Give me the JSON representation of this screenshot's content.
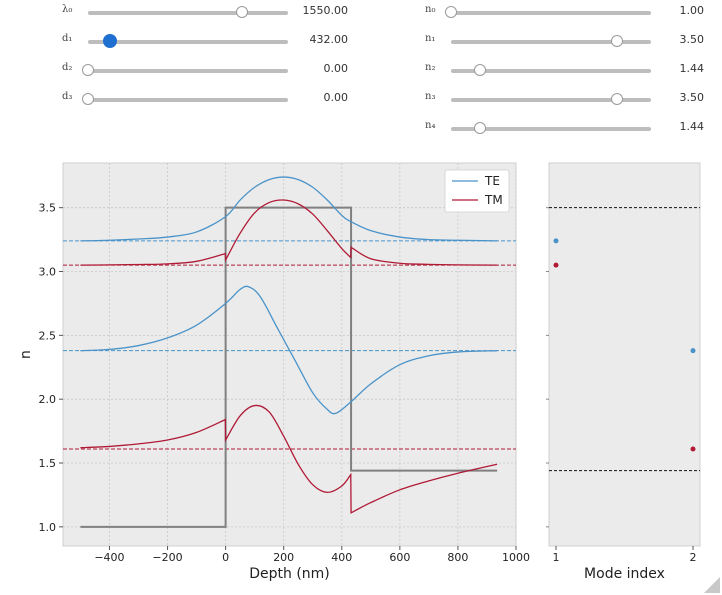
{
  "sliders_left": [
    {
      "label": "λ₀",
      "value_text": "1550.00",
      "fraction": 0.77,
      "active": false
    },
    {
      "label": "d₁",
      "value_text": "432.00",
      "fraction": 0.108,
      "active": true
    },
    {
      "label": "d₂",
      "value_text": "0.00",
      "fraction": 0.0,
      "active": false
    },
    {
      "label": "d₃",
      "value_text": "0.00",
      "fraction": 0.0,
      "active": false
    }
  ],
  "sliders_right": [
    {
      "label": "n₀",
      "value_text": "1.00",
      "fraction": 0.0,
      "active": false
    },
    {
      "label": "n₁",
      "value_text": "3.50",
      "fraction": 0.83,
      "active": false
    },
    {
      "label": "n₂",
      "value_text": "1.44",
      "fraction": 0.147,
      "active": false
    },
    {
      "label": "n₃",
      "value_text": "3.50",
      "fraction": 0.83,
      "active": false
    },
    {
      "label": "n₄",
      "value_text": "1.44",
      "fraction": 0.147,
      "active": false
    }
  ],
  "colors": {
    "te": "#4a93c9",
    "tm": "#b01a35",
    "profile": "#808080",
    "plot_bg": "#ebebeb",
    "grid": "#c8c8c8",
    "knob_active": "#1f6fd1"
  },
  "chart_data": [
    {
      "type": "line",
      "title": "",
      "xlabel": "Depth (nm)",
      "ylabel": "n",
      "xlim": [
        -560,
        1000
      ],
      "ylim": [
        0.85,
        3.85
      ],
      "xticks": [
        -400,
        -200,
        0,
        200,
        400,
        600,
        800,
        1000
      ],
      "xtick_labels": [
        "−400",
        "−200",
        "0",
        "200",
        "400",
        "600",
        "800",
        "1000"
      ],
      "yticks": [
        1.0,
        1.5,
        2.0,
        2.5,
        3.0,
        3.5
      ],
      "ytick_labels": [
        "1.0",
        "1.5",
        "2.0",
        "2.5",
        "3.0",
        "3.5"
      ],
      "grid": true,
      "legend": {
        "position": "top-right",
        "entries": [
          {
            "label": "TE",
            "color": "#4a93c9"
          },
          {
            "label": "TM",
            "color": "#b01a35"
          }
        ]
      },
      "index_profile": {
        "x": [
          -500,
          0,
          0,
          432,
          432,
          935
        ],
        "y": [
          1.0,
          1.0,
          3.5,
          3.5,
          1.44,
          1.44
        ]
      },
      "effective_indices": [
        {
          "polarization": "TE",
          "n_eff": 3.24
        },
        {
          "polarization": "TM",
          "n_eff": 3.05
        },
        {
          "polarization": "TE",
          "n_eff": 2.38
        },
        {
          "polarization": "TM",
          "n_eff": 1.61
        }
      ],
      "mode_profiles": [
        {
          "polarization": "TE",
          "x": [
            -500,
            -400,
            -300,
            -200,
            -100,
            0,
            50,
            100,
            150,
            200,
            250,
            300,
            350,
            400,
            432,
            500,
            600,
            700,
            800,
            935
          ],
          "y": [
            3.24,
            3.245,
            3.255,
            3.27,
            3.31,
            3.43,
            3.56,
            3.66,
            3.72,
            3.74,
            3.72,
            3.66,
            3.56,
            3.44,
            3.39,
            3.32,
            3.27,
            3.25,
            3.245,
            3.24
          ]
        },
        {
          "polarization": "TM",
          "x": [
            -500,
            -400,
            -300,
            -200,
            -100,
            -1,
            0,
            50,
            100,
            150,
            200,
            250,
            300,
            350,
            400,
            431,
            432,
            500,
            600,
            700,
            800,
            935
          ],
          "y": [
            3.05,
            3.052,
            3.055,
            3.06,
            3.08,
            3.14,
            3.09,
            3.3,
            3.46,
            3.54,
            3.56,
            3.53,
            3.45,
            3.32,
            3.18,
            3.11,
            3.19,
            3.1,
            3.065,
            3.056,
            3.052,
            3.05
          ]
        },
        {
          "polarization": "TE",
          "x": [
            -500,
            -400,
            -300,
            -200,
            -100,
            0,
            50,
            80,
            120,
            180,
            240,
            300,
            350,
            380,
            432,
            500,
            600,
            700,
            800,
            935
          ],
          "y": [
            2.38,
            2.39,
            2.42,
            2.48,
            2.58,
            2.75,
            2.86,
            2.88,
            2.8,
            2.55,
            2.3,
            2.05,
            1.92,
            1.89,
            1.98,
            2.12,
            2.27,
            2.34,
            2.37,
            2.38
          ]
        },
        {
          "polarization": "TM",
          "x": [
            -500,
            -400,
            -300,
            -200,
            -100,
            -1,
            0,
            50,
            100,
            150,
            200,
            250,
            300,
            350,
            400,
            431,
            432,
            500,
            600,
            700,
            800,
            935
          ],
          "y": [
            1.62,
            1.63,
            1.65,
            1.68,
            1.74,
            1.84,
            1.68,
            1.87,
            1.95,
            1.9,
            1.71,
            1.49,
            1.33,
            1.27,
            1.32,
            1.41,
            1.11,
            1.19,
            1.29,
            1.36,
            1.42,
            1.49
          ]
        }
      ]
    },
    {
      "type": "scatter",
      "xlabel": "Mode index",
      "ylabel": "",
      "xticks": [
        1,
        2
      ],
      "xtick_labels": [
        "1",
        "2"
      ],
      "ylim": [
        0.85,
        3.85
      ],
      "reference_lines": [
        3.5,
        1.44
      ],
      "series": [
        {
          "name": "TE",
          "x": [
            1,
            2
          ],
          "y": [
            3.24,
            2.38
          ]
        },
        {
          "name": "TM",
          "x": [
            1,
            2
          ],
          "y": [
            3.05,
            1.61
          ]
        }
      ]
    }
  ]
}
